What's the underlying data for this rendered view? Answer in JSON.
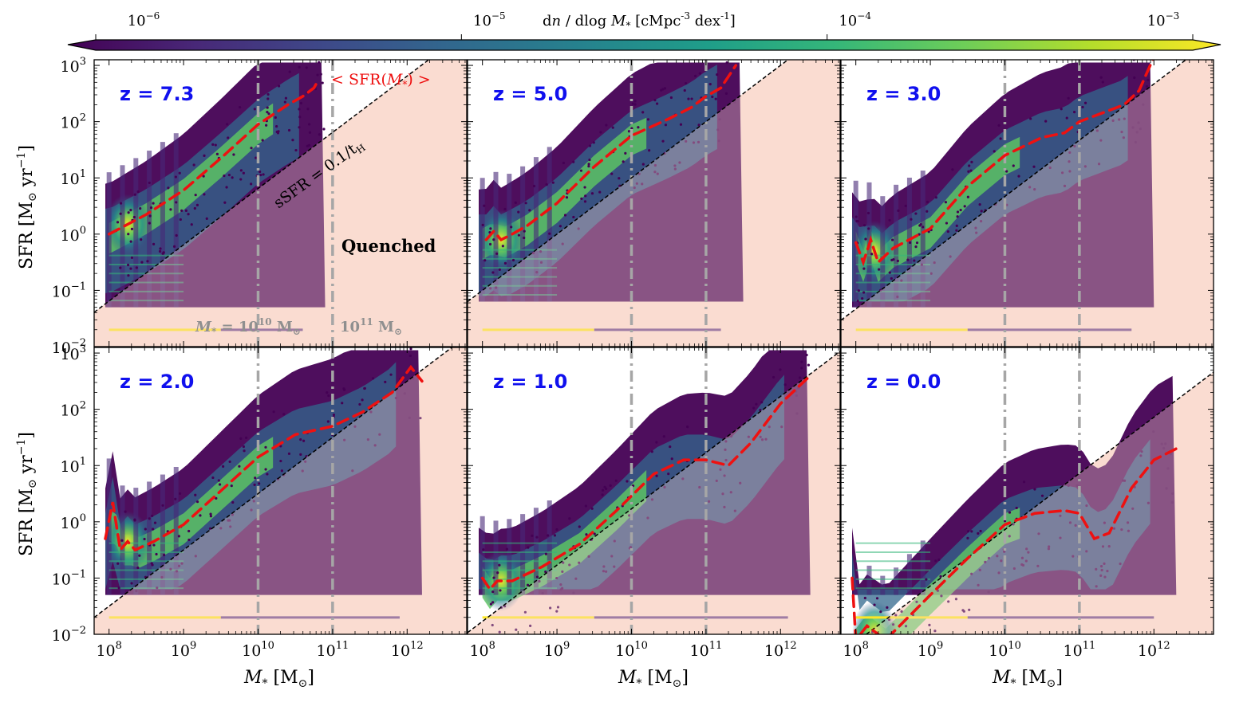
{
  "chart_data": {
    "type": "heatmap",
    "description_free": true,
    "colorbar": {
      "label": "dn/dlog M* [cMpc^-3 dex^-1]",
      "label_parts": {
        "pre": "d",
        "n": "n",
        "mid": " / dlog ",
        "M": "M",
        "sub": "*",
        "post": " [cMpc",
        "exp1": "-3",
        "mid2": " dex",
        "exp2": "-1",
        "end": "]"
      },
      "colormap": "viridis",
      "colors": [
        "#440154",
        "#482878",
        "#3e4989",
        "#31688e",
        "#26828e",
        "#1f9e89",
        "#35b779",
        "#6ece58",
        "#b5de2b",
        "#fde725"
      ],
      "ticks": [
        {
          "base": "10",
          "exp": "−6"
        },
        {
          "base": "10",
          "exp": "−5"
        },
        {
          "base": "10",
          "exp": "−4"
        },
        {
          "base": "10",
          "exp": "−3"
        }
      ],
      "range_log": [
        -6,
        -3
      ]
    },
    "xaxis": {
      "label_M": "M",
      "label_sub": "*",
      "label_unit": " [M",
      "label_unit_sub": "⊙",
      "label_end": "]",
      "scale": "log",
      "lim_log": [
        7.8,
        12.8
      ],
      "ticks_log": [
        8,
        9,
        10,
        11,
        12
      ],
      "tick_base": "10"
    },
    "yaxis": {
      "label_pre": "SFR [M",
      "label_sub": "⊙",
      "label_mid": " yr",
      "label_exp": "−1",
      "label_end": "]",
      "scale": "log",
      "lim_log": [
        -2,
        3.1
      ],
      "ticks_log": [
        -2,
        -1,
        0,
        1,
        2,
        3
      ],
      "tick_base": "10"
    },
    "reference_lines": {
      "vertical_mass_log": [
        10,
        11
      ],
      "vertical_style": "gray dash-dot",
      "quench_line": "sSFR = 0.1/tH",
      "quench_line_parts": {
        "pre": "sSFR = 0.1/t",
        "sub": "H"
      }
    },
    "annotations": {
      "mean_label": "< SFR(M*) >",
      "mean_label_parts": {
        "pre": "< SFR(",
        "M": "M",
        "sub": "*",
        "post": ") >"
      },
      "quenched_label": "Quenched",
      "mass_label_1": {
        "pre": "M",
        "sub": "*",
        "eq": " = 10",
        "exp": "10",
        "unit": " M",
        "unitsub": "⊙"
      },
      "mass_label_2": {
        "base": "10",
        "exp": "11",
        "unit": " M",
        "unitsub": "⊙"
      }
    },
    "panels": [
      {
        "z_label": "z = 7.3",
        "tH_log": -9.19,
        "mass_max_log": 10.9,
        "mean_sfr": [
          [
            8.0,
            0.0
          ],
          [
            8.5,
            0.35
          ],
          [
            9.0,
            0.78
          ],
          [
            9.5,
            1.35
          ],
          [
            10.0,
            1.95
          ],
          [
            10.4,
            2.3
          ],
          [
            10.6,
            2.45
          ],
          [
            10.75,
            2.6
          ],
          [
            10.8,
            2.72
          ]
        ]
      },
      {
        "z_label": "z = 5.0",
        "tH_log": -9.0,
        "mass_max_log": 11.5,
        "mean_sfr": [
          [
            8.05,
            -0.1
          ],
          [
            8.15,
            0.05
          ],
          [
            8.25,
            -0.1
          ],
          [
            8.4,
            0.0
          ],
          [
            8.6,
            0.15
          ],
          [
            9.0,
            0.55
          ],
          [
            9.5,
            1.2
          ],
          [
            10.0,
            1.75
          ],
          [
            10.5,
            2.05
          ],
          [
            10.8,
            2.25
          ],
          [
            11.0,
            2.45
          ],
          [
            11.2,
            2.6
          ],
          [
            11.4,
            3.0
          ]
        ]
      },
      {
        "z_label": "z = 3.0",
        "tH_log": -9.33,
        "mass_max_log": 12.0,
        "mean_sfr": [
          [
            8.0,
            -0.15
          ],
          [
            8.1,
            -0.5
          ],
          [
            8.2,
            -0.1
          ],
          [
            8.3,
            -0.5
          ],
          [
            8.5,
            -0.25
          ],
          [
            9.0,
            0.1
          ],
          [
            9.5,
            0.85
          ],
          [
            10.0,
            1.4
          ],
          [
            10.5,
            1.72
          ],
          [
            10.8,
            1.8
          ],
          [
            11.0,
            2.0
          ],
          [
            11.3,
            2.15
          ],
          [
            11.6,
            2.3
          ],
          [
            11.8,
            2.55
          ],
          [
            12.0,
            3.15
          ]
        ]
      },
      {
        "z_label": "z = 2.0",
        "tH_log": -9.5,
        "mass_max_log": 12.2,
        "mean_sfr": [
          [
            7.95,
            -0.3
          ],
          [
            8.05,
            0.35
          ],
          [
            8.15,
            -0.5
          ],
          [
            8.25,
            -0.35
          ],
          [
            8.35,
            -0.5
          ],
          [
            8.6,
            -0.35
          ],
          [
            9.0,
            -0.05
          ],
          [
            9.5,
            0.55
          ],
          [
            10.0,
            1.15
          ],
          [
            10.5,
            1.55
          ],
          [
            11.0,
            1.7
          ],
          [
            11.4,
            1.95
          ],
          [
            11.8,
            2.3
          ],
          [
            12.05,
            2.75
          ],
          [
            12.2,
            2.5
          ]
        ]
      },
      {
        "z_label": "z = 1.0",
        "tH_log": -9.77,
        "mass_max_log": 12.4,
        "mean_sfr": [
          [
            8.0,
            -1.0
          ],
          [
            8.1,
            -1.2
          ],
          [
            8.2,
            -1.05
          ],
          [
            8.4,
            -1.05
          ],
          [
            8.8,
            -0.8
          ],
          [
            9.3,
            -0.4
          ],
          [
            9.8,
            0.2
          ],
          [
            10.3,
            0.85
          ],
          [
            10.7,
            1.1
          ],
          [
            11.0,
            1.1
          ],
          [
            11.3,
            1.0
          ],
          [
            11.6,
            1.4
          ],
          [
            12.0,
            2.1
          ],
          [
            12.4,
            2.6
          ]
        ]
      },
      {
        "z_label": "z = 0.0",
        "tH_log": -10.14,
        "mass_max_log": 12.3,
        "mean_sfr": [
          [
            7.95,
            -1.0
          ],
          [
            8.0,
            -2.1
          ],
          [
            8.15,
            -1.85
          ],
          [
            8.4,
            -2.1
          ],
          [
            9.0,
            -1.3
          ],
          [
            9.5,
            -0.65
          ],
          [
            10.0,
            -0.05
          ],
          [
            10.4,
            0.15
          ],
          [
            10.8,
            0.2
          ],
          [
            11.0,
            0.15
          ],
          [
            11.2,
            -0.3
          ],
          [
            11.4,
            -0.2
          ],
          [
            11.7,
            0.6
          ],
          [
            12.0,
            1.1
          ],
          [
            12.3,
            1.3
          ]
        ]
      }
    ]
  }
}
